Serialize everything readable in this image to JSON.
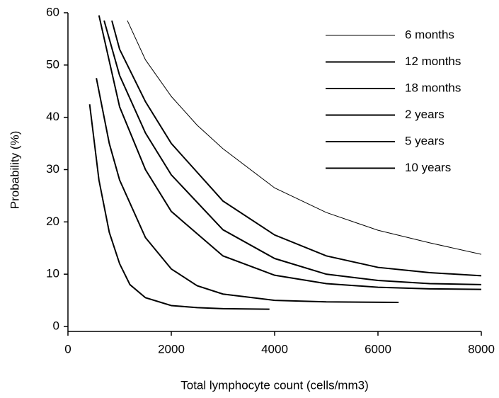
{
  "chart_data": {
    "type": "line",
    "x_label": "Total lymphocyte count (cells/mm3)",
    "y_label": "Probability (%)",
    "xlim": [
      0,
      8000
    ],
    "ylim": [
      0,
      60
    ],
    "xticks": [
      0,
      2000,
      4000,
      6000,
      8000
    ],
    "yticks": [
      0,
      10,
      20,
      30,
      40,
      50,
      60
    ],
    "grid": false,
    "legend": "upper right",
    "series": [
      {
        "name": "6 months",
        "color": "#000000",
        "width": 1,
        "x": [
          1150,
          1500,
          2000,
          2500,
          3000,
          4000,
          5000,
          6000,
          7000,
          8000
        ],
        "values": [
          58.5,
          51,
          44,
          38.5,
          34,
          26.5,
          21.8,
          18.4,
          16,
          13.8
        ]
      },
      {
        "name": "12 months",
        "color": "#000000",
        "width": 2,
        "x": [
          850,
          1000,
          1500,
          2000,
          3000,
          4000,
          5000,
          6000,
          7000,
          8000
        ],
        "values": [
          58.5,
          53,
          43,
          35,
          24,
          17.5,
          13.5,
          11.3,
          10.3,
          9.7
        ]
      },
      {
        "name": "18 months",
        "color": "#000000",
        "width": 2,
        "x": [
          700,
          1000,
          1500,
          2000,
          3000,
          4000,
          5000,
          6000,
          7000,
          8000
        ],
        "values": [
          58.5,
          48,
          37,
          29,
          18.5,
          13,
          10,
          8.8,
          8.2,
          8
        ]
      },
      {
        "name": "2 years",
        "color": "#000000",
        "width": 2,
        "x": [
          600,
          1000,
          1500,
          2000,
          3000,
          4000,
          5000,
          6000,
          7000,
          8000
        ],
        "values": [
          59.5,
          42,
          30,
          22,
          13.5,
          9.8,
          8.2,
          7.5,
          7.2,
          7.1
        ]
      },
      {
        "name": "5 years",
        "color": "#000000",
        "width": 2,
        "x": [
          550,
          800,
          1000,
          1500,
          2000,
          2500,
          3000,
          4000,
          5000,
          6400
        ],
        "values": [
          47.5,
          35,
          28,
          17,
          11,
          7.8,
          6.2,
          5,
          4.7,
          4.6
        ]
      },
      {
        "name": "10 years",
        "color": "#000000",
        "width": 2,
        "x": [
          420,
          600,
          800,
          1000,
          1200,
          1500,
          2000,
          2500,
          3000,
          3900
        ],
        "values": [
          42.5,
          28,
          18,
          12,
          8,
          5.5,
          4,
          3.6,
          3.4,
          3.3
        ]
      }
    ]
  }
}
